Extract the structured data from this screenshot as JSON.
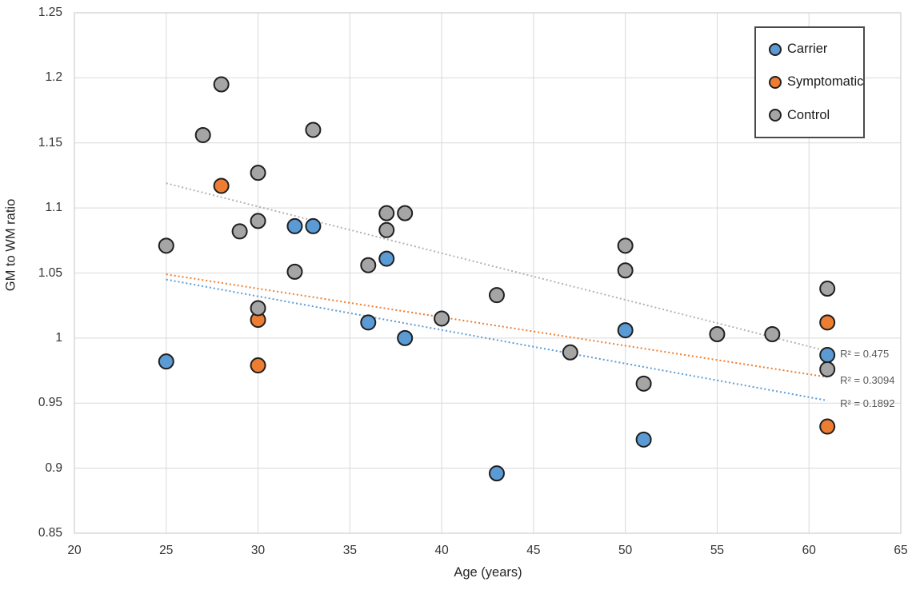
{
  "chart_data": {
    "type": "scatter",
    "title": "",
    "xlabel": "Age (years)",
    "ylabel": "GM to WM ratio",
    "xlim": [
      20,
      65
    ],
    "ylim": [
      0.85,
      1.25
    ],
    "grid": true,
    "legend_position": "top-right",
    "x_ticks": [
      {
        "value": 20,
        "label": "20"
      },
      {
        "value": 25,
        "label": "25"
      },
      {
        "value": 30,
        "label": "30"
      },
      {
        "value": 35,
        "label": "35"
      },
      {
        "value": 40,
        "label": "40"
      },
      {
        "value": 45,
        "label": "45"
      },
      {
        "value": 50,
        "label": "50"
      },
      {
        "value": 55,
        "label": "55"
      },
      {
        "value": 60,
        "label": "60"
      },
      {
        "value": 65,
        "label": "65"
      }
    ],
    "y_ticks": [
      {
        "value": 1.25,
        "label": "1.25"
      },
      {
        "value": 1.2,
        "label": "1.2"
      },
      {
        "value": 1.15,
        "label": "1.15"
      },
      {
        "value": 1.1,
        "label": "1.1"
      },
      {
        "value": 1.05,
        "label": "1.05"
      },
      {
        "value": 1.0,
        "label": "1"
      },
      {
        "value": 0.95,
        "label": "0.95"
      },
      {
        "value": 0.9,
        "label": "0.9"
      },
      {
        "value": 0.85,
        "label": "0.85"
      }
    ],
    "series": [
      {
        "name": "Carrier",
        "color": "#5B9BD5",
        "marker_border": "#1f1f1f",
        "points": [
          [
            25,
            0.982
          ],
          [
            32,
            1.086
          ],
          [
            33,
            1.086
          ],
          [
            36,
            1.012
          ],
          [
            37,
            1.061
          ],
          [
            38,
            1.0
          ],
          [
            43,
            0.896
          ],
          [
            50,
            1.006
          ],
          [
            51,
            0.922
          ],
          [
            61,
            0.987
          ]
        ]
      },
      {
        "name": "Symptomatic",
        "color": "#ED7D31",
        "marker_border": "#1f1f1f",
        "points": [
          [
            28,
            1.117
          ],
          [
            30,
            1.014
          ],
          [
            30,
            0.979
          ],
          [
            61,
            1.012
          ],
          [
            61,
            0.932
          ]
        ]
      },
      {
        "name": "Control",
        "color": "#A5A5A5",
        "marker_border": "#1f1f1f",
        "points": [
          [
            25,
            1.071
          ],
          [
            27,
            1.156
          ],
          [
            28,
            1.195
          ],
          [
            29,
            1.082
          ],
          [
            30,
            1.127
          ],
          [
            30,
            1.09
          ],
          [
            30,
            1.023
          ],
          [
            32,
            1.051
          ],
          [
            33,
            1.16
          ],
          [
            36,
            1.056
          ],
          [
            37,
            1.096
          ],
          [
            37,
            1.083
          ],
          [
            38,
            1.096
          ],
          [
            40,
            1.015
          ],
          [
            43,
            1.033
          ],
          [
            47,
            0.989
          ],
          [
            50,
            1.071
          ],
          [
            50,
            1.052
          ],
          [
            51,
            0.965
          ],
          [
            55,
            1.003
          ],
          [
            58,
            1.003
          ],
          [
            61,
            1.038
          ],
          [
            61,
            0.976
          ]
        ]
      }
    ],
    "trendlines": [
      {
        "series": "Control",
        "color": "#b3b3b3",
        "style": "dotted",
        "x1": 25,
        "y1": 1.119,
        "x2": 61,
        "y2": 0.99,
        "r2_label": "R² = 0.475"
      },
      {
        "series": "Symptomatic",
        "color": "#ED7D31",
        "style": "dotted",
        "x1": 25,
        "y1": 1.049,
        "x2": 61,
        "y2": 0.97,
        "r2_label": "R² = 0.3094"
      },
      {
        "series": "Carrier",
        "color": "#5B9BD5",
        "style": "dotted",
        "x1": 25,
        "y1": 1.045,
        "x2": 61,
        "y2": 0.952,
        "r2_label": "R² = 0.1892"
      }
    ],
    "colors": {
      "gridline": "#D9D9D9",
      "plot_border": "#C6C6C6",
      "tick_text": "#333333",
      "r2_text": "#595959",
      "background": "#ffffff"
    }
  },
  "legend": {
    "items": [
      {
        "label": "Carrier",
        "color": "#5B9BD5"
      },
      {
        "label": "Symptomatic",
        "color": "#ED7D31"
      },
      {
        "label": "Control",
        "color": "#A5A5A5"
      }
    ]
  }
}
